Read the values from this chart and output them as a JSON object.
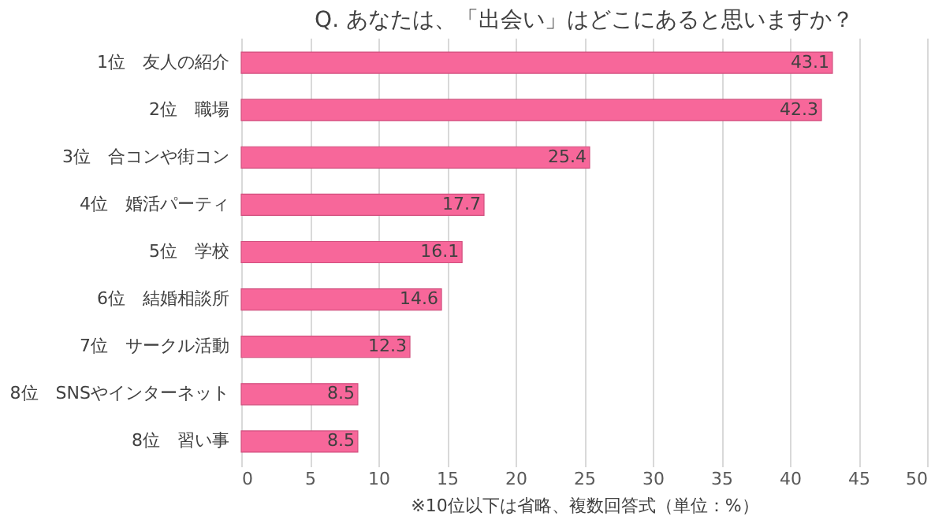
{
  "chart_data": {
    "type": "bar",
    "orientation": "horizontal",
    "title": "Q. あなたは、「出会い」はどこにあると思いますか？",
    "xlabel": "※10位以下は省略、複数回答式（単位：%）",
    "categories": [
      "1位　友人の紹介",
      "2位　職場",
      "3位　合コンや街コン",
      "4位　婚活パーティ",
      "5位　学校",
      "6位　結婚相談所",
      "7位　サークル活動",
      "8位　SNSやインターネット",
      "8位　習い事"
    ],
    "values": [
      43.1,
      42.3,
      25.4,
      17.7,
      16.1,
      14.6,
      12.3,
      8.5,
      8.5
    ],
    "color": "#f7679a",
    "data_labels": true,
    "grid": "x",
    "xlim": [
      0,
      50
    ],
    "xticks": [
      0,
      5,
      10,
      15,
      20,
      25,
      30,
      35,
      40,
      45,
      50
    ]
  }
}
